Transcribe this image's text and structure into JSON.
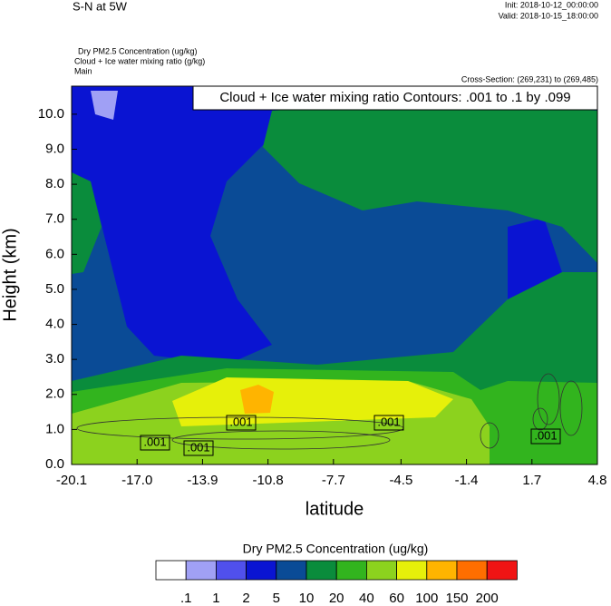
{
  "chart_data": {
    "type": "contour",
    "title": "S-N at 5W",
    "init": "Init: 2018-10-12_00:00:00",
    "valid": "Valid: 2018-10-15_18:00:00",
    "fields": [
      "Dry PM2.5 Concentration   (ug/kg)",
      "Cloud + Ice water mixing ratio   (g/kg)",
      "Main"
    ],
    "cross_section": "Cross-Section: (269,231) to (269,485)",
    "contour_info": "Cloud + Ice water mixing ratio Contours: .001 to .1 by .099",
    "x_label": "latitude",
    "y_label": "Height (km)",
    "xlim": [
      -20.1,
      4.8
    ],
    "xticks": [
      -20.1,
      {
        "value": -17,
        "label": "-17.0"
      },
      -13.9,
      -10.8,
      -7.7,
      -4.5,
      -1.4,
      1.7,
      4.8
    ],
    "ylim": [
      0,
      10.8
    ],
    "yticks": [
      {
        "value": 0,
        "label": "0.0"
      },
      {
        "value": 1,
        "label": "1.0"
      },
      {
        "value": 2,
        "label": "2.0"
      },
      {
        "value": 3,
        "label": "3.0"
      },
      {
        "value": 4,
        "label": "4.0"
      },
      {
        "value": 5,
        "label": "5.0"
      },
      {
        "value": 6,
        "label": "6.0"
      },
      {
        "value": 7,
        "label": "7.0"
      },
      {
        "value": 8,
        "label": "8.0"
      },
      {
        "value": 9,
        "label": "9.0"
      },
      {
        "value": 10,
        "label": "10.0"
      }
    ],
    "contour_labels": [
      ".001",
      ".001",
      ".001",
      ".001",
      ".001"
    ],
    "colorbar": {
      "title": "Dry PM2.5 Concentration  (ug/kg)",
      "levels": [
        {
          "value": 0.1,
          "label": ".1"
        },
        1,
        2,
        5,
        10,
        20,
        40,
        60,
        100,
        150,
        200
      ],
      "colors": [
        "#ffffff",
        "#a0a0f5",
        "#5050ec",
        "#0a14d2",
        "#0a4b96",
        "#0a8c3c",
        "#32b41e",
        "#8cd21e",
        "#e6f00a",
        "#ffb400",
        "#ff6e00",
        "#f01414"
      ]
    }
  }
}
